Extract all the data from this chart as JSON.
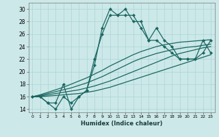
{
  "xlabel": "Humidex (Indice chaleur)",
  "xlim": [
    -0.5,
    23.5
  ],
  "ylim": [
    13.5,
    31
  ],
  "xticks": [
    0,
    1,
    2,
    3,
    4,
    5,
    6,
    7,
    8,
    9,
    10,
    11,
    12,
    13,
    14,
    15,
    16,
    17,
    18,
    19,
    20,
    21,
    22,
    23
  ],
  "yticks": [
    14,
    16,
    18,
    20,
    22,
    24,
    26,
    28,
    30
  ],
  "bg_color": "#cce8e8",
  "line_color": "#1a6660",
  "grid_color": "#aad4d4",
  "series_zigzag1": [
    16,
    16,
    15,
    14,
    16,
    15,
    16,
    17,
    21,
    27,
    30,
    29,
    30,
    28,
    28,
    25,
    27,
    25,
    24,
    22,
    22,
    22,
    25,
    23
  ],
  "series_zigzag2": [
    16,
    16,
    15,
    15,
    18,
    14,
    16,
    17,
    22,
    26,
    29,
    29,
    29,
    29,
    27,
    25,
    25,
    24,
    23,
    22,
    22,
    22,
    23,
    25
  ],
  "series_fan": [
    [
      16,
      16.0,
      16.1,
      16.2,
      16.3,
      16.4,
      16.5,
      16.7,
      16.9,
      17.2,
      17.5,
      17.9,
      18.3,
      18.7,
      19.1,
      19.5,
      19.9,
      20.3,
      20.7,
      21.1,
      21.5,
      21.9,
      22.3,
      22.7
    ],
    [
      16,
      16.1,
      16.3,
      16.5,
      16.7,
      16.9,
      17.1,
      17.4,
      17.7,
      18.1,
      18.5,
      19.0,
      19.5,
      20.0,
      20.5,
      21.0,
      21.5,
      22.0,
      22.5,
      22.9,
      23.2,
      23.5,
      23.8,
      24.0
    ],
    [
      16,
      16.2,
      16.5,
      16.8,
      17.1,
      17.4,
      17.8,
      18.2,
      18.7,
      19.2,
      19.8,
      20.4,
      21.0,
      21.6,
      22.1,
      22.5,
      22.9,
      23.2,
      23.5,
      23.7,
      23.9,
      24.0,
      24.2,
      24.4
    ],
    [
      16,
      16.3,
      16.7,
      17.1,
      17.5,
      18.0,
      18.5,
      19.0,
      19.6,
      20.2,
      20.9,
      21.5,
      22.1,
      22.7,
      23.2,
      23.6,
      24.0,
      24.3,
      24.5,
      24.7,
      24.8,
      24.9,
      25.0,
      25.1
    ]
  ],
  "marker": "D",
  "markersize": 2.2,
  "linewidth": 0.9
}
